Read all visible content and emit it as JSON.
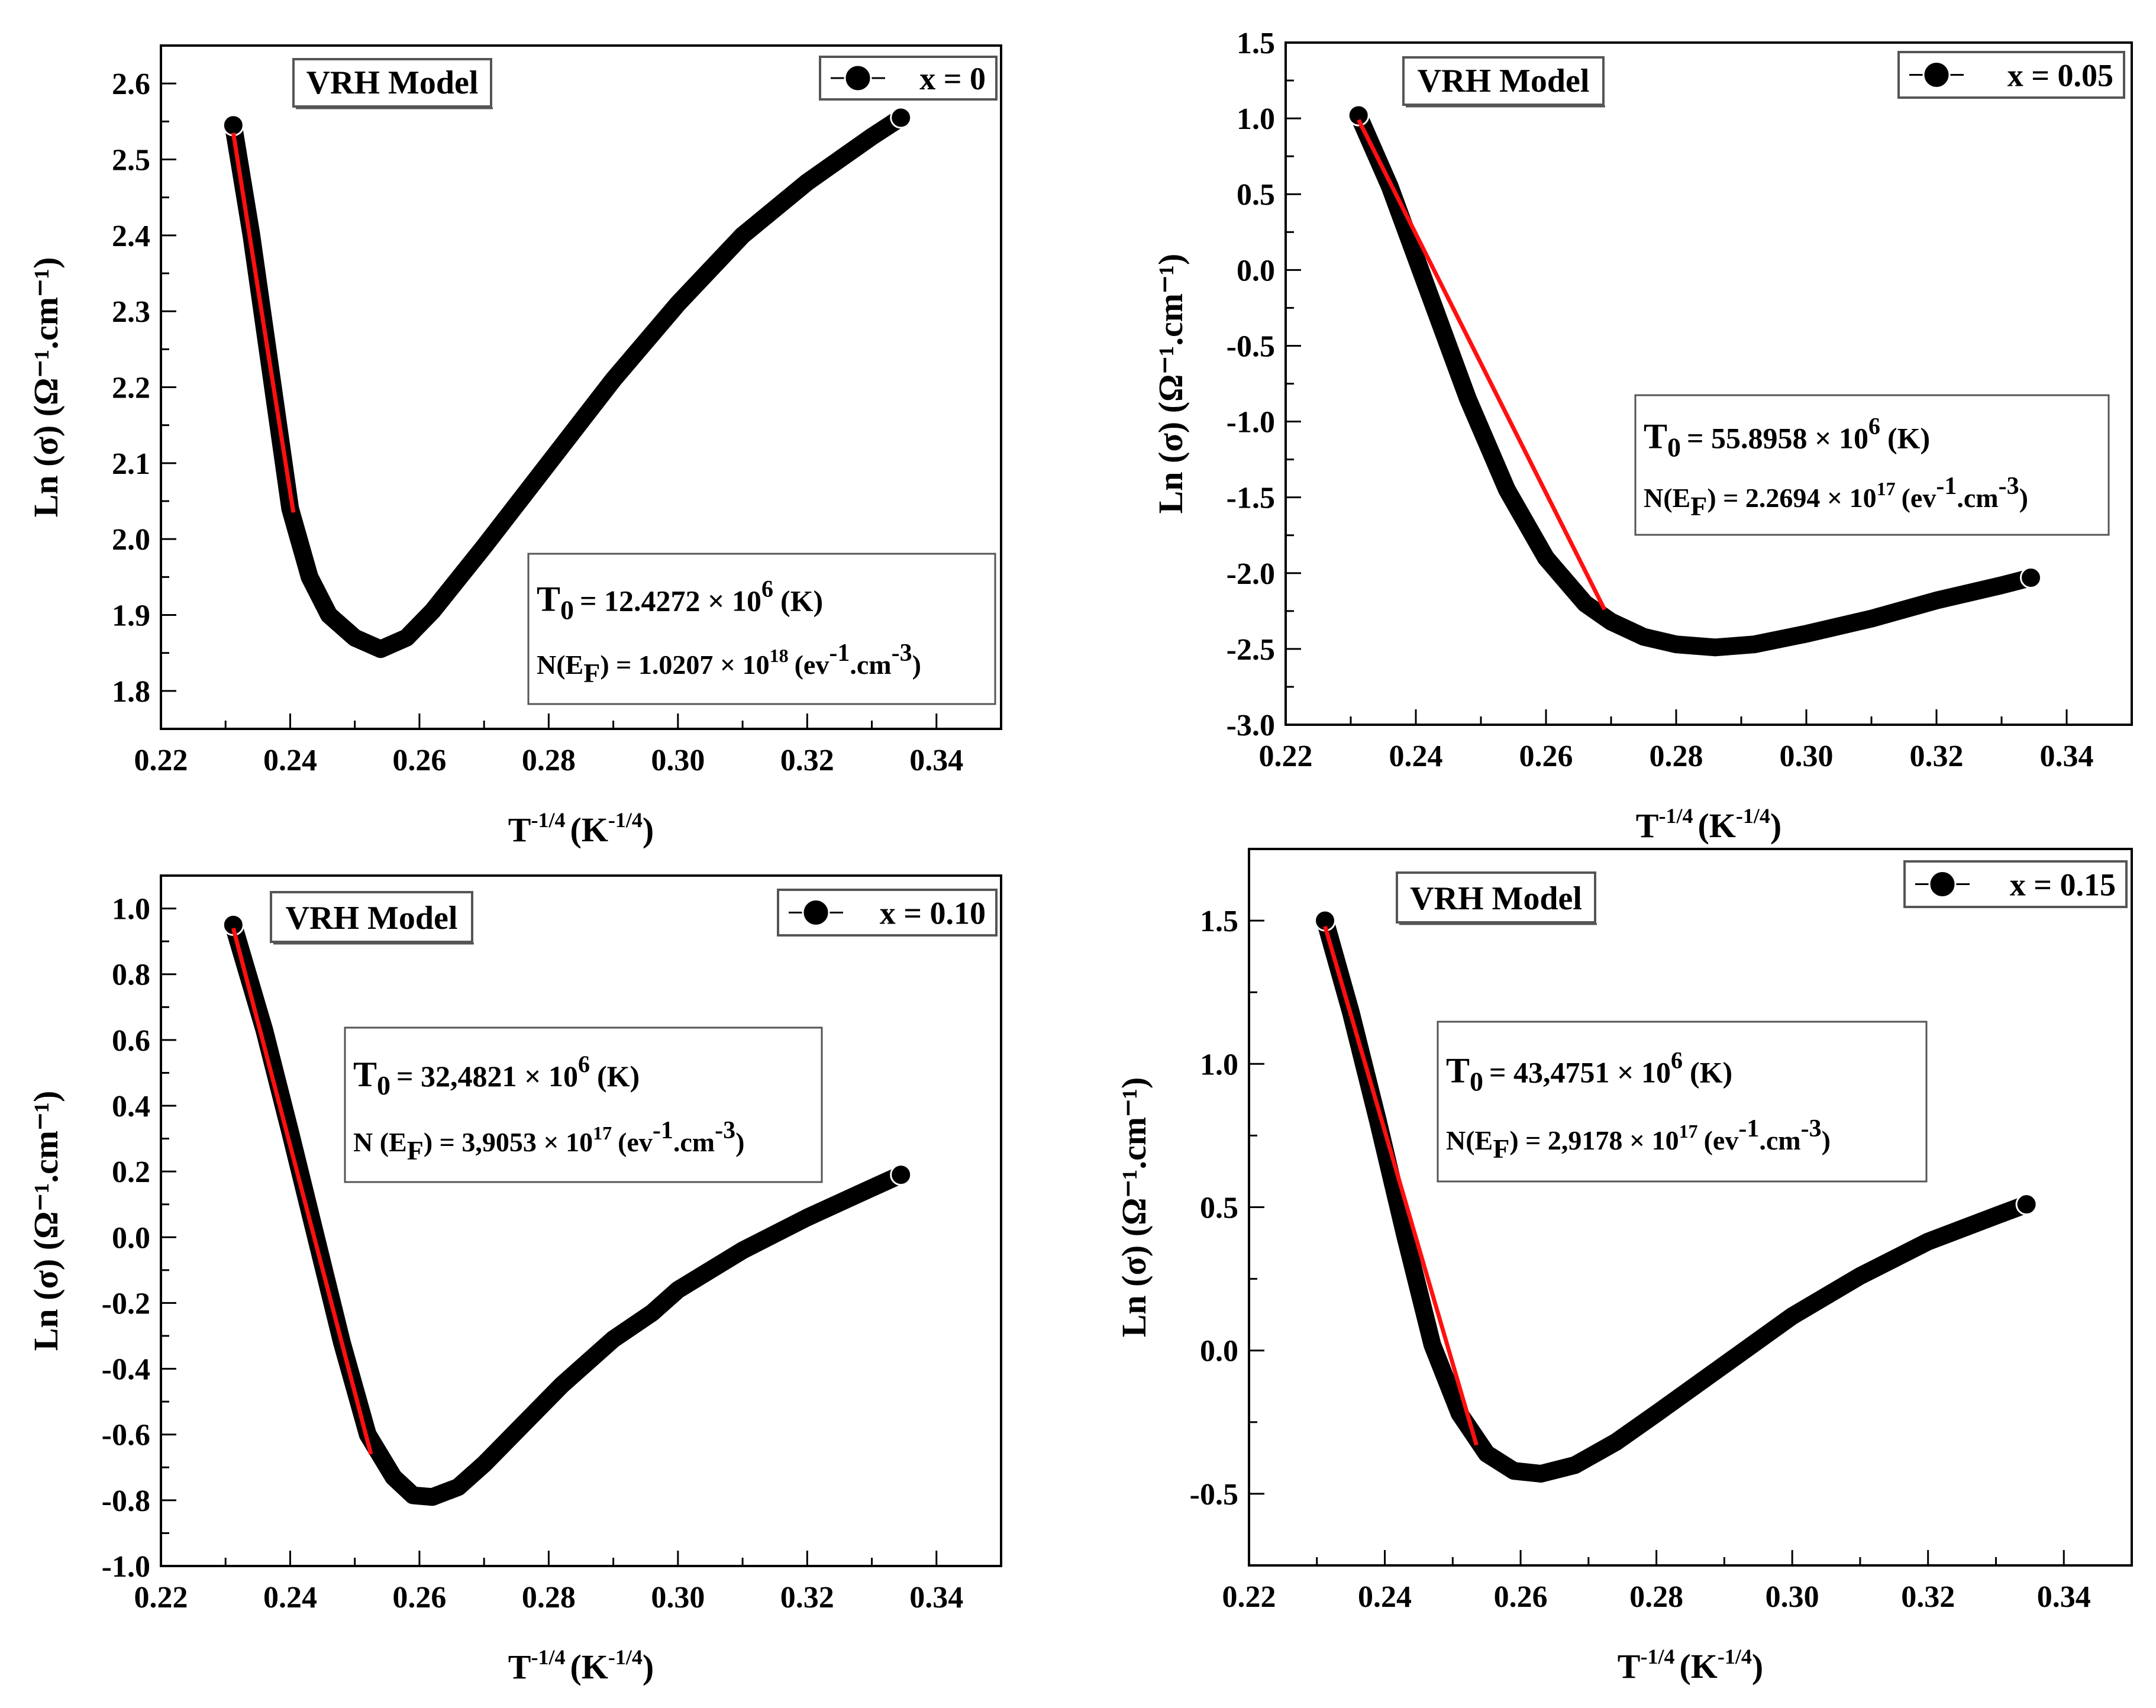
{
  "colors": {
    "data": "#000000",
    "fit": "#ff1010",
    "axis": "#000000",
    "box_border": "#555555"
  },
  "icons": {
    "legend_marker": "filled-circle-line-icon"
  },
  "chart_data": [
    {
      "type": "scatter",
      "title": "",
      "model_label": "VRH Model",
      "legend": "x = 0",
      "legend_position": "top-right",
      "params_position": "bottom-right",
      "xlabel": {
        "base": "T",
        "base_sup": "-1/4",
        "unit_open": "(K",
        "unit_sup": "-1/4",
        "unit_close": ")"
      },
      "ylabel": "Ln (σ) (Ω⁻¹.cm⁻¹)",
      "xlim": [
        0.22,
        0.35
      ],
      "ylim": [
        1.75,
        2.65
      ],
      "xticks": [
        0.22,
        0.24,
        0.26,
        0.28,
        0.3,
        0.32,
        0.34
      ],
      "yticks": [
        1.8,
        1.9,
        2.0,
        2.1,
        2.2,
        2.3,
        2.4,
        2.5,
        2.6
      ],
      "ytick_decimals": 1,
      "curve": [
        [
          0.2312,
          2.545
        ],
        [
          0.234,
          2.4
        ],
        [
          0.237,
          2.22
        ],
        [
          0.24,
          2.04
        ],
        [
          0.243,
          1.95
        ],
        [
          0.246,
          1.9
        ],
        [
          0.25,
          1.87
        ],
        [
          0.254,
          1.855
        ],
        [
          0.258,
          1.87
        ],
        [
          0.262,
          1.905
        ],
        [
          0.27,
          1.99
        ],
        [
          0.28,
          2.1
        ],
        [
          0.29,
          2.21
        ],
        [
          0.3,
          2.31
        ],
        [
          0.31,
          2.4
        ],
        [
          0.32,
          2.47
        ],
        [
          0.33,
          2.53
        ],
        [
          0.3345,
          2.555
        ]
      ],
      "fit": [
        [
          0.2312,
          2.535
        ],
        [
          0.2405,
          2.035
        ]
      ],
      "params": {
        "t0_base": "T",
        "t0_sub": "0",
        "t0_value": "= 12.4272 × 10",
        "t0_exp": "6",
        "t0_unit": "(K)",
        "n_base": "N(E",
        "n_sub": "F",
        "n_value": ") = 1.0207 × 10",
        "n_exp": "18",
        "n_unit_open": "(ev",
        "n_unit_sup1": "-1",
        "n_unit_mid": ".cm",
        "n_unit_sup2": "-3",
        "n_unit_close": ")"
      }
    },
    {
      "type": "scatter",
      "title": "",
      "model_label": "VRH Model",
      "legend": "x = 0.05",
      "legend_position": "top-right",
      "params_position": "center-right",
      "xlabel": {
        "base": "T",
        "base_sup": "-1/4",
        "unit_open": "(K",
        "unit_sup": "-1/4",
        "unit_close": ")"
      },
      "ylabel": "Ln (σ) (Ω⁻¹.cm⁻¹)",
      "xlim": [
        0.22,
        0.35
      ],
      "ylim": [
        -3.0,
        1.5
      ],
      "xticks": [
        0.22,
        0.24,
        0.26,
        0.28,
        0.3,
        0.32,
        0.34
      ],
      "yticks": [
        -3.0,
        -2.5,
        -2.0,
        -1.5,
        -1.0,
        -0.5,
        0.0,
        0.5,
        1.0,
        1.5
      ],
      "ytick_decimals": 1,
      "curve": [
        [
          0.2312,
          1.02
        ],
        [
          0.236,
          0.55
        ],
        [
          0.242,
          -0.15
        ],
        [
          0.248,
          -0.85
        ],
        [
          0.254,
          -1.45
        ],
        [
          0.26,
          -1.9
        ],
        [
          0.266,
          -2.2
        ],
        [
          0.27,
          -2.32
        ],
        [
          0.275,
          -2.42
        ],
        [
          0.28,
          -2.47
        ],
        [
          0.286,
          -2.49
        ],
        [
          0.292,
          -2.47
        ],
        [
          0.3,
          -2.4
        ],
        [
          0.31,
          -2.3
        ],
        [
          0.32,
          -2.18
        ],
        [
          0.33,
          -2.08
        ],
        [
          0.3345,
          -2.03
        ]
      ],
      "fit": [
        [
          0.2312,
          0.99
        ],
        [
          0.269,
          -2.24
        ]
      ],
      "params": {
        "t0_base": "T",
        "t0_sub": "0",
        "t0_value": "= 55.8958 × 10",
        "t0_exp": "6",
        "t0_unit": "(K)",
        "n_base": "N(E",
        "n_sub": "F",
        "n_value": ") = 2.2694 × 10",
        "n_exp": "17",
        "n_unit_open": "(ev",
        "n_unit_sup1": "-1",
        "n_unit_mid": ".cm",
        "n_unit_sup2": "-3",
        "n_unit_close": ")"
      }
    },
    {
      "type": "scatter",
      "title": "",
      "model_label": "VRH Model",
      "legend": "x = 0.10",
      "legend_position": "top-right",
      "params_position": "upper-center",
      "xlabel": {
        "base": "T",
        "base_sup": "-1/4",
        "unit_open": "(K",
        "unit_sup": "-1/4",
        "unit_close": ")"
      },
      "ylabel": "Ln (σ) (Ω⁻¹.cm⁻¹)",
      "xlim": [
        0.22,
        0.35
      ],
      "ylim": [
        -1.0,
        1.1
      ],
      "xticks": [
        0.22,
        0.24,
        0.26,
        0.28,
        0.3,
        0.32,
        0.34
      ],
      "yticks": [
        -1.0,
        -0.8,
        -0.6,
        -0.4,
        -0.2,
        0.0,
        0.2,
        0.4,
        0.6,
        0.8,
        1.0
      ],
      "ytick_decimals": 1,
      "curve": [
        [
          0.2312,
          0.95
        ],
        [
          0.236,
          0.63
        ],
        [
          0.24,
          0.32
        ],
        [
          0.244,
          0.0
        ],
        [
          0.248,
          -0.32
        ],
        [
          0.252,
          -0.6
        ],
        [
          0.256,
          -0.73
        ],
        [
          0.259,
          -0.785
        ],
        [
          0.262,
          -0.79
        ],
        [
          0.266,
          -0.76
        ],
        [
          0.27,
          -0.69
        ],
        [
          0.276,
          -0.57
        ],
        [
          0.282,
          -0.45
        ],
        [
          0.29,
          -0.31
        ],
        [
          0.296,
          -0.23
        ],
        [
          0.3,
          -0.16
        ],
        [
          0.31,
          -0.04
        ],
        [
          0.32,
          0.06
        ],
        [
          0.33,
          0.15
        ],
        [
          0.3345,
          0.19
        ]
      ],
      "fit": [
        [
          0.2312,
          0.94
        ],
        [
          0.2525,
          -0.66
        ]
      ],
      "params": {
        "t0_base": "T",
        "t0_sub": "0",
        "t0_value": "= 32,4821 × 10",
        "t0_exp": "6",
        "t0_unit": "(K)",
        "n_base": "N (E",
        "n_sub": "F",
        "n_value": ") = 3,9053 × 10",
        "n_exp": "17",
        "n_unit_open": "(ev",
        "n_unit_sup1": "-1",
        "n_unit_mid": ".cm",
        "n_unit_sup2": "-3",
        "n_unit_close": ")"
      }
    },
    {
      "type": "scatter",
      "title": "",
      "model_label": "VRH Model",
      "legend": "x = 0.15",
      "legend_position": "top-right",
      "params_position": "upper-center",
      "xlabel": {
        "base": "T",
        "base_sup": "-1/4",
        "unit_open": "(K",
        "unit_sup": "-1/4",
        "unit_close": ")"
      },
      "ylabel": "Ln (σ) (Ω⁻¹.cm⁻¹)",
      "xlim": [
        0.22,
        0.35
      ],
      "ylim": [
        -0.75,
        1.75
      ],
      "xticks": [
        0.22,
        0.24,
        0.26,
        0.28,
        0.3,
        0.32,
        0.34
      ],
      "yticks": [
        -0.5,
        0.0,
        0.5,
        1.0,
        1.5
      ],
      "ytick_decimals": 1,
      "curve": [
        [
          0.2312,
          1.5
        ],
        [
          0.235,
          1.18
        ],
        [
          0.239,
          0.8
        ],
        [
          0.243,
          0.4
        ],
        [
          0.247,
          0.02
        ],
        [
          0.251,
          -0.22
        ],
        [
          0.255,
          -0.36
        ],
        [
          0.259,
          -0.42
        ],
        [
          0.263,
          -0.43
        ],
        [
          0.268,
          -0.4
        ],
        [
          0.274,
          -0.32
        ],
        [
          0.28,
          -0.22
        ],
        [
          0.29,
          -0.05
        ],
        [
          0.3,
          0.12
        ],
        [
          0.31,
          0.26
        ],
        [
          0.32,
          0.38
        ],
        [
          0.33,
          0.47
        ],
        [
          0.3345,
          0.51
        ]
      ],
      "fit": [
        [
          0.2312,
          1.48
        ],
        [
          0.2535,
          -0.33
        ]
      ],
      "params": {
        "t0_base": "T",
        "t0_sub": "0",
        "t0_value": "= 43,4751 × 10",
        "t0_exp": "6",
        "t0_unit": "(K)",
        "n_base": "N(E",
        "n_sub": "F",
        "n_value": ") = 2,9178 × 10",
        "n_exp": "17",
        "n_unit_open": "(ev",
        "n_unit_sup1": "-1",
        "n_unit_mid": ".cm",
        "n_unit_sup2": "-3",
        "n_unit_close": ")"
      }
    }
  ]
}
